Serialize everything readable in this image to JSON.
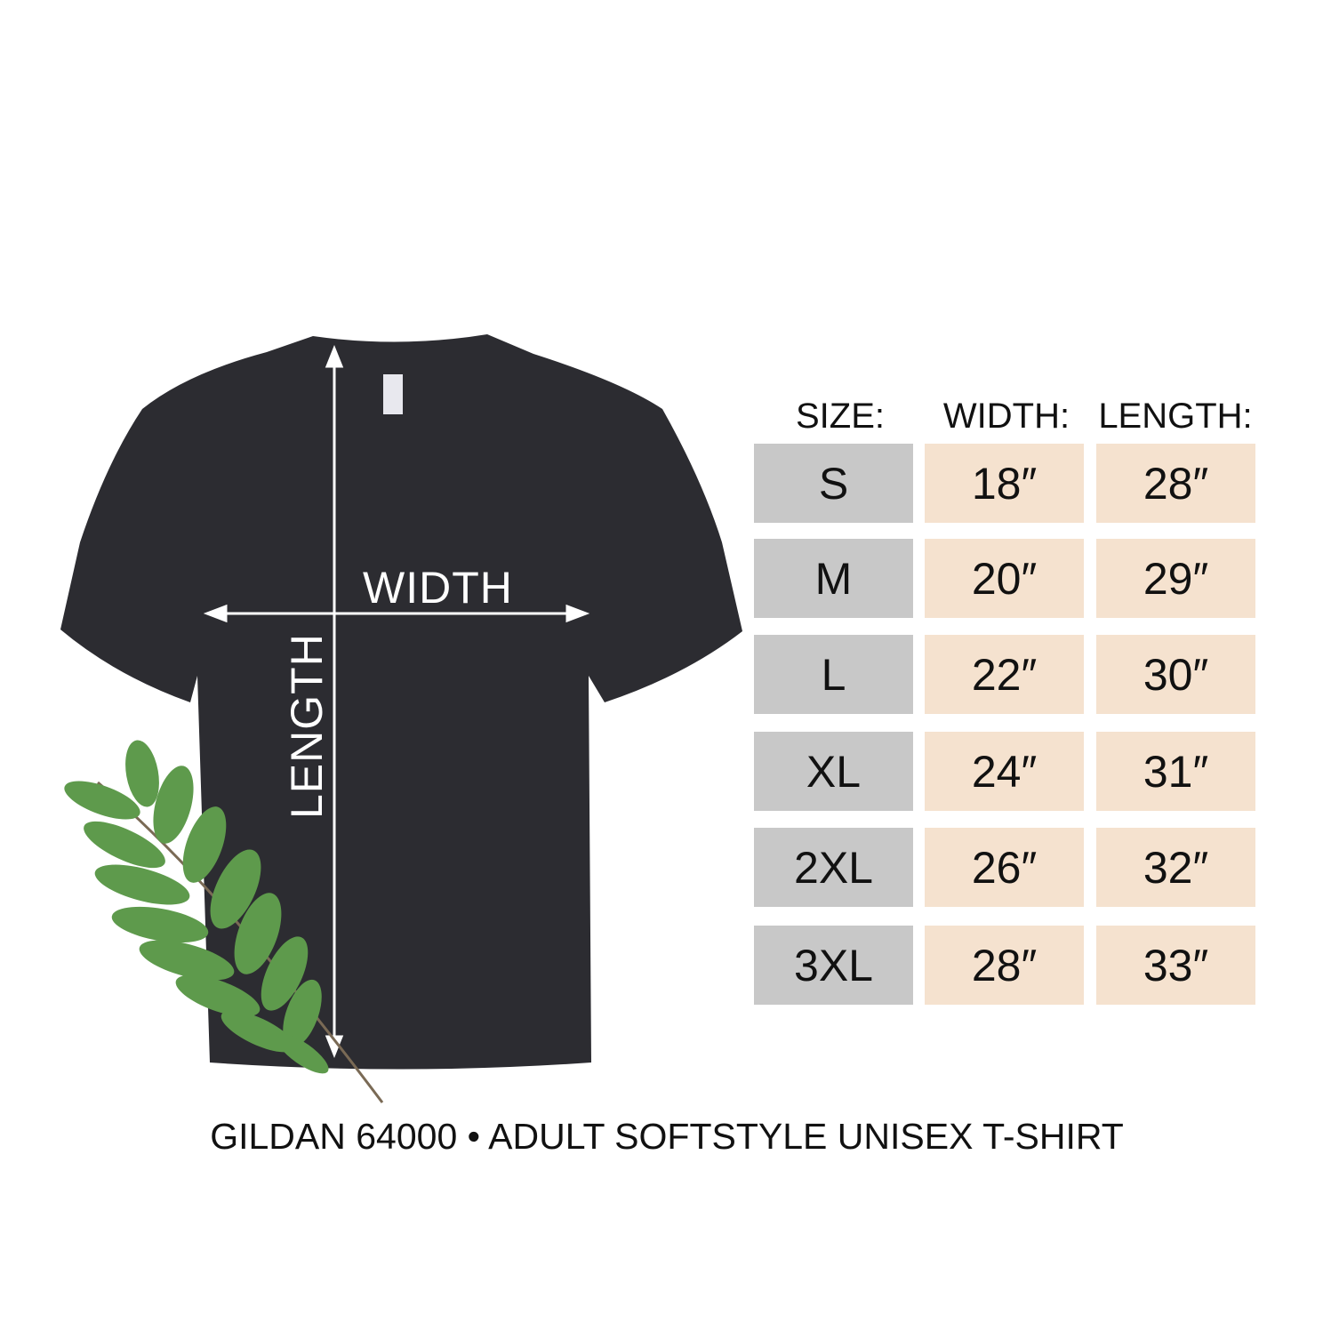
{
  "headers": {
    "size": "SIZE:",
    "width": "WIDTH:",
    "length": "LENGTH:"
  },
  "rows": [
    {
      "size": "S",
      "width": "18″",
      "length": "28″"
    },
    {
      "size": "M",
      "width": "20″",
      "length": "29″"
    },
    {
      "size": "L",
      "width": "22″",
      "length": "30″"
    },
    {
      "size": "XL",
      "width": "24″",
      "length": "31″"
    },
    {
      "size": "2XL",
      "width": "26″",
      "length": "32″"
    },
    {
      "size": "3XL",
      "width": "28″",
      "length": "33″"
    }
  ],
  "shirt_labels": {
    "width": "WIDTH",
    "length": "LENGTH"
  },
  "footer": "GILDAN 64000 • ADULT SOFTSTYLE UNISEX T-SHIRT",
  "colors": {
    "shirt": "#2c2c31",
    "size_cell": "#c8c8c8",
    "measure_cell": "#f5e2cf",
    "leaf": "#5e9a4c"
  }
}
